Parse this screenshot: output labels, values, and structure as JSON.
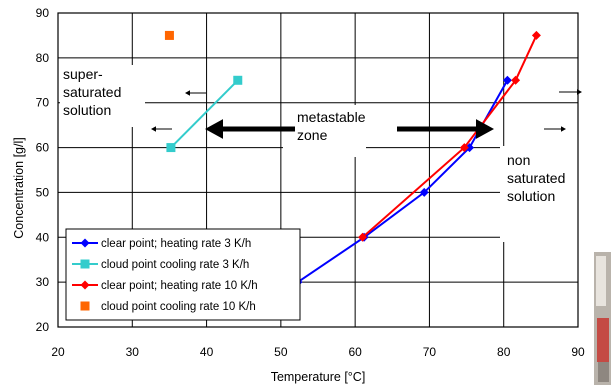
{
  "chart_data": {
    "type": "line",
    "title": "",
    "xlabel": "Temperature [°C]",
    "ylabel": "Concentration [g/l]",
    "xlim": [
      20,
      90
    ],
    "ylim": [
      20,
      90
    ],
    "xticks": [
      20,
      30,
      40,
      50,
      60,
      70,
      80,
      90
    ],
    "yticks": [
      20,
      30,
      40,
      50,
      60,
      70,
      80,
      90
    ],
    "grid": true,
    "legend_position": "bottom-left",
    "series": [
      {
        "name": "clear point; heating rate 3 K/h",
        "color": "#0000ff",
        "marker": "diamond",
        "line": true,
        "x": [
          52.3,
          61.2,
          69.3,
          75.4,
          80.5
        ],
        "y": [
          30,
          40,
          50,
          60,
          75
        ]
      },
      {
        "name": "cloud point cooling rate 3 K/h",
        "color": "#33cccc",
        "marker": "square",
        "line": true,
        "x": [
          35.2,
          44.2
        ],
        "y": [
          60,
          75
        ]
      },
      {
        "name": "clear point; heating rate 10 K/h",
        "color": "#ff0000",
        "marker": "diamond",
        "line": true,
        "x": [
          61.0,
          74.7,
          81.6,
          84.4
        ],
        "y": [
          40,
          60,
          75,
          85
        ]
      },
      {
        "name": "cloud point cooling rate 10 K/h",
        "color": "#ff6600",
        "marker": "square",
        "line": false,
        "x": [
          35.0
        ],
        "y": [
          85
        ]
      }
    ],
    "annotations": [
      {
        "id": "super",
        "lines": [
          "super-",
          "saturated",
          "solution"
        ]
      },
      {
        "id": "metastable",
        "lines": [
          "metastable",
          "zone"
        ]
      },
      {
        "id": "non",
        "lines": [
          "non",
          "saturated",
          "solution"
        ]
      }
    ]
  }
}
